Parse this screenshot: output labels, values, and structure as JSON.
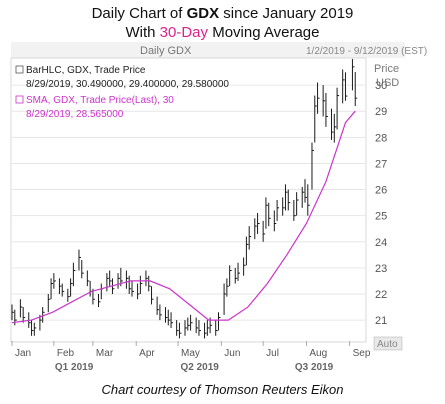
{
  "header": {
    "line1_pre": "Daily Chart of ",
    "line1_ticker": "GDX",
    "line1_post": " since January 2019",
    "line2_pre": "With ",
    "line2_highlight": "30-Day",
    "line2_post": " Moving Average"
  },
  "panel": {
    "title": "Daily GDX",
    "date_range": "1/2/2019 - 9/12/2019 (EST)",
    "price_label": "Price",
    "currency_label": "USD",
    "auto_label": "Auto"
  },
  "legend": {
    "line1": "BarHLC, GDX, Trade Price",
    "line2": "8/29/2019, 30.490000, 29.400000, 29.580000",
    "line3": "SMA, GDX, Trade Price(Last),  30",
    "line4": "8/29/2019, 28.565000"
  },
  "footer": "Chart courtesy of Thomson Reuters Eikon",
  "colors": {
    "price_bar": "#1a1a1a",
    "sma_line": "#cc33cc",
    "grid": "#e6e6e6",
    "panel_bg": "#ffffff",
    "axis_text": "#555555",
    "highlight": "#e0218a"
  },
  "chart_data": {
    "type": "line",
    "title": "Daily Chart of GDX since January 2019 With 30-Day Moving Average",
    "ylabel": "Price USD",
    "ylim": [
      20.2,
      31.0
    ],
    "y_ticks": [
      "21",
      "22",
      "23",
      "24",
      "25",
      "26",
      "27",
      "28",
      "29",
      "30"
    ],
    "x_month_labels": [
      "Jan",
      "Feb",
      "Mar",
      "Apr",
      "May",
      "Jun",
      "Jul",
      "Aug",
      "Sep"
    ],
    "x_quarter_labels": [
      "Q1 2019",
      "Q2 2019",
      "Q3 2019"
    ],
    "grid": true,
    "legend_placement": "top-left",
    "x_start": "2019-01-02",
    "x_end": "2019-09-12",
    "series": [
      {
        "name": "BarHLC, GDX, Trade Price",
        "kind": "hlc-bars",
        "points": [
          {
            "date": "2019-01-02",
            "high": 21.6,
            "low": 21.0,
            "close": 21.3
          },
          {
            "date": "2019-01-04",
            "high": 21.4,
            "low": 20.8,
            "close": 21.0
          },
          {
            "date": "2019-01-08",
            "high": 21.8,
            "low": 21.1,
            "close": 21.5
          },
          {
            "date": "2019-01-10",
            "high": 21.5,
            "low": 20.9,
            "close": 21.1
          },
          {
            "date": "2019-01-14",
            "high": 21.3,
            "low": 20.7,
            "close": 20.9
          },
          {
            "date": "2019-01-16",
            "high": 21.0,
            "low": 20.4,
            "close": 20.6
          },
          {
            "date": "2019-01-18",
            "high": 20.9,
            "low": 20.4,
            "close": 20.7
          },
          {
            "date": "2019-01-22",
            "high": 21.2,
            "low": 20.6,
            "close": 21.0
          },
          {
            "date": "2019-01-24",
            "high": 21.5,
            "low": 20.9,
            "close": 21.3
          },
          {
            "date": "2019-01-28",
            "high": 22.0,
            "low": 21.3,
            "close": 21.8
          },
          {
            "date": "2019-01-30",
            "high": 22.6,
            "low": 21.8,
            "close": 22.4
          },
          {
            "date": "2019-02-01",
            "high": 22.8,
            "low": 22.2,
            "close": 22.5
          },
          {
            "date": "2019-02-05",
            "high": 22.6,
            "low": 22.0,
            "close": 22.3
          },
          {
            "date": "2019-02-07",
            "high": 22.4,
            "low": 21.9,
            "close": 22.1
          },
          {
            "date": "2019-02-11",
            "high": 22.2,
            "low": 21.7,
            "close": 21.9
          },
          {
            "date": "2019-02-13",
            "high": 22.6,
            "low": 21.9,
            "close": 22.4
          },
          {
            "date": "2019-02-15",
            "high": 23.2,
            "low": 22.3,
            "close": 22.9
          },
          {
            "date": "2019-02-19",
            "high": 23.7,
            "low": 22.9,
            "close": 23.4
          },
          {
            "date": "2019-02-21",
            "high": 23.3,
            "low": 22.6,
            "close": 22.8
          },
          {
            "date": "2019-02-25",
            "high": 22.9,
            "low": 22.3,
            "close": 22.5
          },
          {
            "date": "2019-02-27",
            "high": 22.5,
            "low": 21.9,
            "close": 22.1
          },
          {
            "date": "2019-03-01",
            "high": 22.2,
            "low": 21.6,
            "close": 21.8
          },
          {
            "date": "2019-03-05",
            "high": 22.0,
            "low": 21.5,
            "close": 21.7
          },
          {
            "date": "2019-03-07",
            "high": 22.4,
            "low": 21.8,
            "close": 22.2
          },
          {
            "date": "2019-03-11",
            "high": 22.8,
            "low": 22.1,
            "close": 22.6
          },
          {
            "date": "2019-03-13",
            "high": 22.9,
            "low": 22.3,
            "close": 22.5
          },
          {
            "date": "2019-03-15",
            "high": 22.6,
            "low": 22.0,
            "close": 22.2
          },
          {
            "date": "2019-03-19",
            "high": 22.8,
            "low": 22.2,
            "close": 22.6
          },
          {
            "date": "2019-03-21",
            "high": 23.0,
            "low": 22.3,
            "close": 22.5
          },
          {
            "date": "2019-03-25",
            "high": 22.9,
            "low": 22.2,
            "close": 22.6
          },
          {
            "date": "2019-03-27",
            "high": 22.7,
            "low": 22.0,
            "close": 22.2
          },
          {
            "date": "2019-03-29",
            "high": 22.5,
            "low": 21.9,
            "close": 22.1
          },
          {
            "date": "2019-04-02",
            "high": 22.4,
            "low": 21.8,
            "close": 22.0
          },
          {
            "date": "2019-04-04",
            "high": 22.7,
            "low": 22.0,
            "close": 22.4
          },
          {
            "date": "2019-04-08",
            "high": 22.9,
            "low": 22.3,
            "close": 22.6
          },
          {
            "date": "2019-04-10",
            "high": 22.7,
            "low": 22.1,
            "close": 22.3
          },
          {
            "date": "2019-04-12",
            "high": 22.3,
            "low": 21.6,
            "close": 21.8
          },
          {
            "date": "2019-04-16",
            "high": 21.9,
            "low": 21.2,
            "close": 21.4
          },
          {
            "date": "2019-04-18",
            "high": 21.6,
            "low": 21.0,
            "close": 21.2
          },
          {
            "date": "2019-04-22",
            "high": 21.5,
            "low": 20.9,
            "close": 21.1
          },
          {
            "date": "2019-04-24",
            "high": 21.4,
            "low": 20.8,
            "close": 21.0
          },
          {
            "date": "2019-04-26",
            "high": 21.3,
            "low": 20.7,
            "close": 20.9
          },
          {
            "date": "2019-04-30",
            "high": 21.0,
            "low": 20.4,
            "close": 20.6
          },
          {
            "date": "2019-05-02",
            "high": 20.9,
            "low": 20.3,
            "close": 20.5
          },
          {
            "date": "2019-05-06",
            "high": 21.0,
            "low": 20.4,
            "close": 20.7
          },
          {
            "date": "2019-05-08",
            "high": 21.1,
            "low": 20.6,
            "close": 20.8
          },
          {
            "date": "2019-05-10",
            "high": 21.2,
            "low": 20.6,
            "close": 20.9
          },
          {
            "date": "2019-05-14",
            "high": 21.1,
            "low": 20.5,
            "close": 20.7
          },
          {
            "date": "2019-05-16",
            "high": 21.0,
            "low": 20.4,
            "close": 20.6
          },
          {
            "date": "2019-05-20",
            "high": 20.9,
            "low": 20.3,
            "close": 20.5
          },
          {
            "date": "2019-05-22",
            "high": 21.0,
            "low": 20.4,
            "close": 20.7
          },
          {
            "date": "2019-05-24",
            "high": 21.1,
            "low": 20.5,
            "close": 20.8
          },
          {
            "date": "2019-05-28",
            "high": 21.0,
            "low": 20.4,
            "close": 20.6
          },
          {
            "date": "2019-05-30",
            "high": 21.3,
            "low": 20.6,
            "close": 21.1
          },
          {
            "date": "2019-06-03",
            "high": 22.4,
            "low": 21.2,
            "close": 22.0
          },
          {
            "date": "2019-06-05",
            "high": 22.6,
            "low": 21.9,
            "close": 22.3
          },
          {
            "date": "2019-06-07",
            "high": 23.1,
            "low": 22.3,
            "close": 22.9
          },
          {
            "date": "2019-06-11",
            "high": 23.0,
            "low": 22.4,
            "close": 22.6
          },
          {
            "date": "2019-06-13",
            "high": 23.2,
            "low": 22.5,
            "close": 22.8
          },
          {
            "date": "2019-06-17",
            "high": 23.4,
            "low": 22.7,
            "close": 23.1
          },
          {
            "date": "2019-06-19",
            "high": 24.2,
            "low": 23.1,
            "close": 23.9
          },
          {
            "date": "2019-06-21",
            "high": 24.6,
            "low": 23.7,
            "close": 24.2
          },
          {
            "date": "2019-06-25",
            "high": 24.9,
            "low": 24.1,
            "close": 24.6
          },
          {
            "date": "2019-06-27",
            "high": 25.1,
            "low": 24.3,
            "close": 24.7
          },
          {
            "date": "2019-07-01",
            "high": 24.8,
            "low": 24.0,
            "close": 24.3
          },
          {
            "date": "2019-07-03",
            "high": 25.7,
            "low": 24.5,
            "close": 25.4
          },
          {
            "date": "2019-07-05",
            "high": 25.5,
            "low": 24.6,
            "close": 24.9
          },
          {
            "date": "2019-07-09",
            "high": 25.2,
            "low": 24.4,
            "close": 24.7
          },
          {
            "date": "2019-07-11",
            "high": 25.6,
            "low": 24.8,
            "close": 25.3
          },
          {
            "date": "2019-07-15",
            "high": 25.7,
            "low": 25.0,
            "close": 25.3
          },
          {
            "date": "2019-07-17",
            "high": 26.2,
            "low": 25.2,
            "close": 25.9
          },
          {
            "date": "2019-07-19",
            "high": 26.0,
            "low": 25.2,
            "close": 25.5
          },
          {
            "date": "2019-07-23",
            "high": 25.6,
            "low": 24.8,
            "close": 25.0
          },
          {
            "date": "2019-07-25",
            "high": 25.9,
            "low": 25.0,
            "close": 25.6
          },
          {
            "date": "2019-07-29",
            "high": 26.1,
            "low": 25.3,
            "close": 25.9
          },
          {
            "date": "2019-07-31",
            "high": 26.4,
            "low": 25.5,
            "close": 25.7
          },
          {
            "date": "2019-08-02",
            "high": 26.2,
            "low": 25.0,
            "close": 25.4
          },
          {
            "date": "2019-08-05",
            "high": 27.8,
            "low": 26.0,
            "close": 27.5
          },
          {
            "date": "2019-08-07",
            "high": 29.6,
            "low": 27.8,
            "close": 29.2
          },
          {
            "date": "2019-08-09",
            "high": 30.1,
            "low": 28.9,
            "close": 29.5
          },
          {
            "date": "2019-08-13",
            "high": 30.0,
            "low": 28.8,
            "close": 29.4
          },
          {
            "date": "2019-08-15",
            "high": 29.7,
            "low": 28.4,
            "close": 28.8
          },
          {
            "date": "2019-08-19",
            "high": 29.1,
            "low": 27.9,
            "close": 28.2
          },
          {
            "date": "2019-08-21",
            "high": 28.9,
            "low": 27.8,
            "close": 28.4
          },
          {
            "date": "2019-08-23",
            "high": 29.9,
            "low": 28.3,
            "close": 29.6
          },
          {
            "date": "2019-08-27",
            "high": 30.6,
            "low": 29.3,
            "close": 30.2
          },
          {
            "date": "2019-08-29",
            "high": 30.49,
            "low": 29.4,
            "close": 29.58
          },
          {
            "date": "2019-09-03",
            "high": 31.0,
            "low": 29.8,
            "close": 30.7
          },
          {
            "date": "2019-09-05",
            "high": 30.5,
            "low": 29.2,
            "close": 29.5
          }
        ]
      },
      {
        "name": "SMA, GDX, Trade Price(Last),  30",
        "kind": "line",
        "points": [
          {
            "date": "2019-01-02",
            "value": 20.9
          },
          {
            "date": "2019-01-16",
            "value": 21.0
          },
          {
            "date": "2019-01-31",
            "value": 21.3
          },
          {
            "date": "2019-02-14",
            "value": 21.7
          },
          {
            "date": "2019-02-28",
            "value": 22.1
          },
          {
            "date": "2019-03-14",
            "value": 22.3
          },
          {
            "date": "2019-03-28",
            "value": 22.5
          },
          {
            "date": "2019-04-11",
            "value": 22.5
          },
          {
            "date": "2019-04-25",
            "value": 22.2
          },
          {
            "date": "2019-05-09",
            "value": 21.6
          },
          {
            "date": "2019-05-23",
            "value": 21.0
          },
          {
            "date": "2019-06-06",
            "value": 21.0
          },
          {
            "date": "2019-06-20",
            "value": 21.5
          },
          {
            "date": "2019-07-04",
            "value": 22.4
          },
          {
            "date": "2019-07-18",
            "value": 23.5
          },
          {
            "date": "2019-08-01",
            "value": 24.7
          },
          {
            "date": "2019-08-15",
            "value": 26.3
          },
          {
            "date": "2019-08-29",
            "value": 28.565
          },
          {
            "date": "2019-09-05",
            "value": 29.0
          }
        ]
      }
    ]
  }
}
